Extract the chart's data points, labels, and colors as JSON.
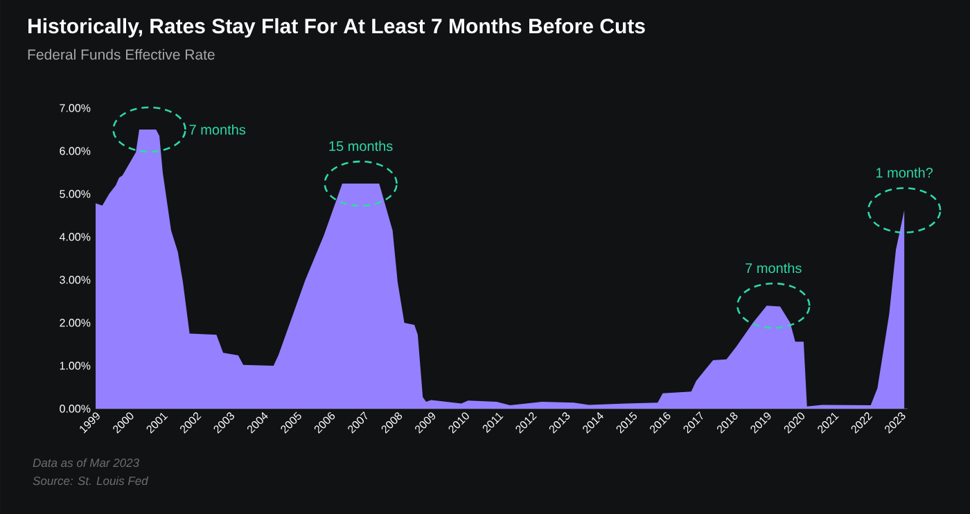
{
  "chart_data": {
    "type": "area",
    "title": "Historically, Rates Stay Flat For At Least 7 Months Before Cuts",
    "subtitle": "Federal Funds Effective Rate",
    "x": [
      1999.0,
      1999.2,
      1999.4,
      1999.6,
      1999.7,
      1999.8,
      2000.0,
      2000.2,
      2000.3,
      2000.8,
      2000.9,
      2001.0,
      2001.25,
      2001.45,
      2001.6,
      2001.8,
      2002.6,
      2002.8,
      2003.25,
      2003.4,
      2004.3,
      2004.45,
      2005.25,
      2005.8,
      2006.35,
      2007.45,
      2007.85,
      2008.0,
      2008.2,
      2008.5,
      2008.6,
      2008.75,
      2008.85,
      2009.0,
      2009.9,
      2010.1,
      2010.95,
      2011.35,
      2012.3,
      2013.25,
      2013.7,
      2014.8,
      2015.75,
      2015.9,
      2016.75,
      2016.9,
      2017.4,
      2017.8,
      2018.1,
      2018.6,
      2019.0,
      2019.4,
      2019.7,
      2019.85,
      2020.1,
      2020.2,
      2020.65,
      2022.1,
      2022.3,
      2022.65,
      2022.85,
      2023.1
    ],
    "values": [
      4.78,
      4.73,
      5.0,
      5.2,
      5.38,
      5.43,
      5.7,
      5.97,
      6.5,
      6.5,
      6.35,
      5.5,
      4.15,
      3.65,
      2.95,
      1.75,
      1.72,
      1.3,
      1.24,
      1.02,
      1.0,
      1.25,
      3.0,
      4.03,
      5.24,
      5.24,
      4.15,
      2.95,
      2.0,
      1.95,
      1.72,
      0.27,
      0.16,
      0.2,
      0.12,
      0.19,
      0.16,
      0.08,
      0.16,
      0.14,
      0.09,
      0.12,
      0.14,
      0.36,
      0.4,
      0.65,
      1.13,
      1.15,
      1.45,
      2.01,
      2.4,
      2.38,
      2.0,
      1.56,
      1.56,
      0.05,
      0.09,
      0.08,
      0.48,
      2.2,
      3.7,
      4.62
    ],
    "color": "#9580ff",
    "xlim": [
      1999,
      2023.2
    ],
    "ylim": [
      0,
      7
    ],
    "xticks": [
      1999,
      2000,
      2001,
      2002,
      2003,
      2004,
      2005,
      2006,
      2007,
      2008,
      2009,
      2010,
      2011,
      2012,
      2013,
      2014,
      2015,
      2016,
      2017,
      2018,
      2019,
      2020,
      2021,
      2022,
      2023
    ],
    "yticks": [
      {
        "value": 0,
        "label": "0.00%"
      },
      {
        "value": 1,
        "label": "1.00%"
      },
      {
        "value": 2,
        "label": "2.00%"
      },
      {
        "value": 3,
        "label": "3.00%"
      },
      {
        "value": 4,
        "label": "4.00%"
      },
      {
        "value": 5,
        "label": "5.00%"
      },
      {
        "value": 6,
        "label": "6.00%"
      },
      {
        "value": 7,
        "label": "7.00%"
      }
    ],
    "annotations": [
      {
        "text": "7 months",
        "x": 2000.6,
        "y": 6.5
      },
      {
        "text": "15 months",
        "x": 2006.9,
        "y": 5.24
      },
      {
        "text": "7 months",
        "x": 2019.2,
        "y": 2.4
      },
      {
        "text": "1 month?",
        "x": 2023.1,
        "y": 4.62
      },
      "Data as of Mar 2023",
      "Source: St. Louis Fed"
    ]
  }
}
